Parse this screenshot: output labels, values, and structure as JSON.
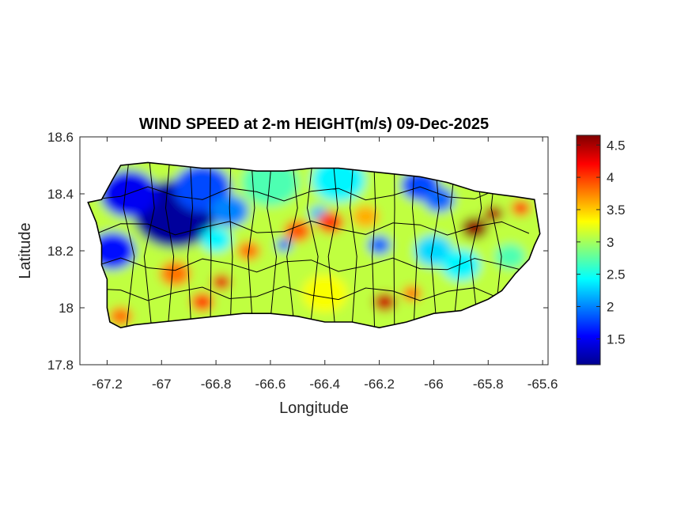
{
  "title": "WIND SPEED at 2-m HEIGHT(m/s) 09-Dec-2025",
  "chart_data": {
    "type": "heatmap",
    "title": "WIND SPEED at 2-m HEIGHT(m/s) 09-Dec-2025",
    "xlabel": "Longitude",
    "ylabel": "Latitude",
    "xlim": [
      -67.3,
      -65.58
    ],
    "ylim": [
      17.8,
      18.6
    ],
    "xticks": [
      -67.2,
      -67,
      -66.8,
      -66.6,
      -66.4,
      -66.2,
      -66,
      -65.8,
      -65.6
    ],
    "xtick_labels": [
      "-67.2",
      "-67",
      "-66.8",
      "-66.6",
      "-66.4",
      "-66.2",
      "-66",
      "-65.8",
      "-65.6"
    ],
    "yticks": [
      17.8,
      18,
      18.2,
      18.4,
      18.6
    ],
    "ytick_labels": [
      "17.8",
      "18",
      "18.2",
      "18.4",
      "18.6"
    ],
    "colorbar": {
      "colormap": "jet",
      "range": [
        1.1,
        4.65
      ],
      "ticks": [
        1.5,
        2,
        2.5,
        3,
        3.5,
        4,
        4.5
      ],
      "tick_labels": [
        "1.5",
        "2",
        "2.5",
        "3",
        "3.5",
        "4",
        "4.5"
      ]
    },
    "island_outline": [
      [
        -67.27,
        18.37
      ],
      [
        -67.22,
        18.38
      ],
      [
        -67.18,
        18.45
      ],
      [
        -67.15,
        18.5
      ],
      [
        -67.05,
        18.51
      ],
      [
        -66.95,
        18.5
      ],
      [
        -66.85,
        18.49
      ],
      [
        -66.75,
        18.49
      ],
      [
        -66.65,
        18.48
      ],
      [
        -66.55,
        18.48
      ],
      [
        -66.45,
        18.49
      ],
      [
        -66.35,
        18.49
      ],
      [
        -66.25,
        18.48
      ],
      [
        -66.15,
        18.47
      ],
      [
        -66.05,
        18.46
      ],
      [
        -65.95,
        18.44
      ],
      [
        -65.85,
        18.41
      ],
      [
        -65.78,
        18.4
      ],
      [
        -65.7,
        18.39
      ],
      [
        -65.63,
        18.38
      ],
      [
        -65.62,
        18.32
      ],
      [
        -65.61,
        18.26
      ],
      [
        -65.63,
        18.22
      ],
      [
        -65.65,
        18.17
      ],
      [
        -65.7,
        18.12
      ],
      [
        -65.75,
        18.06
      ],
      [
        -65.8,
        18.03
      ],
      [
        -65.85,
        18.01
      ],
      [
        -65.9,
        17.99
      ],
      [
        -66.0,
        17.98
      ],
      [
        -66.1,
        17.95
      ],
      [
        -66.2,
        17.93
      ],
      [
        -66.3,
        17.95
      ],
      [
        -66.4,
        17.95
      ],
      [
        -66.5,
        17.97
      ],
      [
        -66.6,
        17.98
      ],
      [
        -66.7,
        17.98
      ],
      [
        -66.8,
        17.97
      ],
      [
        -66.9,
        17.96
      ],
      [
        -67.0,
        17.95
      ],
      [
        -67.1,
        17.94
      ],
      [
        -67.15,
        17.93
      ],
      [
        -67.19,
        17.95
      ],
      [
        -67.2,
        18.0
      ],
      [
        -67.2,
        18.1
      ],
      [
        -67.22,
        18.15
      ],
      [
        -67.22,
        18.22
      ],
      [
        -67.24,
        18.3
      ],
      [
        -67.27,
        18.37
      ]
    ],
    "wind_features": [
      {
        "lon": -66.95,
        "lat": 18.33,
        "value": 1.2,
        "radius": 0.22
      },
      {
        "lon": -67.12,
        "lat": 18.4,
        "value": 1.5,
        "radius": 0.15
      },
      {
        "lon": -67.18,
        "lat": 18.2,
        "value": 1.6,
        "radius": 0.12
      },
      {
        "lon": -66.85,
        "lat": 18.42,
        "value": 1.8,
        "radius": 0.15
      },
      {
        "lon": -66.75,
        "lat": 18.34,
        "value": 2.0,
        "radius": 0.1
      },
      {
        "lon": -66.6,
        "lat": 18.44,
        "value": 2.7,
        "radius": 0.15
      },
      {
        "lon": -66.35,
        "lat": 18.45,
        "value": 2.4,
        "radius": 0.14
      },
      {
        "lon": -66.42,
        "lat": 18.33,
        "value": 2.2,
        "radius": 0.05
      },
      {
        "lon": -66.05,
        "lat": 18.43,
        "value": 1.8,
        "radius": 0.1
      },
      {
        "lon": -65.98,
        "lat": 18.38,
        "value": 1.9,
        "radius": 0.08
      },
      {
        "lon": -66.2,
        "lat": 18.22,
        "value": 1.9,
        "radius": 0.06
      },
      {
        "lon": -66.0,
        "lat": 18.2,
        "value": 2.3,
        "radius": 0.1
      },
      {
        "lon": -66.55,
        "lat": 18.22,
        "value": 1.9,
        "radius": 0.04
      },
      {
        "lon": -66.8,
        "lat": 18.24,
        "value": 2.4,
        "radius": 0.08
      },
      {
        "lon": -66.5,
        "lat": 18.27,
        "value": 3.9,
        "radius": 0.07
      },
      {
        "lon": -66.38,
        "lat": 18.3,
        "value": 4.0,
        "radius": 0.07
      },
      {
        "lon": -66.25,
        "lat": 18.32,
        "value": 3.6,
        "radius": 0.07
      },
      {
        "lon": -66.68,
        "lat": 18.2,
        "value": 3.8,
        "radius": 0.06
      },
      {
        "lon": -66.95,
        "lat": 18.12,
        "value": 3.8,
        "radius": 0.08
      },
      {
        "lon": -66.78,
        "lat": 18.09,
        "value": 4.3,
        "radius": 0.05
      },
      {
        "lon": -66.85,
        "lat": 18.02,
        "value": 4.0,
        "radius": 0.06
      },
      {
        "lon": -67.15,
        "lat": 17.97,
        "value": 3.8,
        "radius": 0.06
      },
      {
        "lon": -66.18,
        "lat": 18.02,
        "value": 4.4,
        "radius": 0.06
      },
      {
        "lon": -66.08,
        "lat": 18.05,
        "value": 3.8,
        "radius": 0.05
      },
      {
        "lon": -65.85,
        "lat": 18.28,
        "value": 4.6,
        "radius": 0.07
      },
      {
        "lon": -65.78,
        "lat": 18.33,
        "value": 4.5,
        "radius": 0.05
      },
      {
        "lon": -65.68,
        "lat": 18.35,
        "value": 4.0,
        "radius": 0.05
      },
      {
        "lon": -65.9,
        "lat": 18.15,
        "value": 2.4,
        "radius": 0.1
      },
      {
        "lon": -65.72,
        "lat": 18.18,
        "value": 2.7,
        "radius": 0.08
      },
      {
        "lon": -66.4,
        "lat": 18.05,
        "value": 3.3,
        "radius": 0.12
      }
    ],
    "background_value": 3.1
  }
}
